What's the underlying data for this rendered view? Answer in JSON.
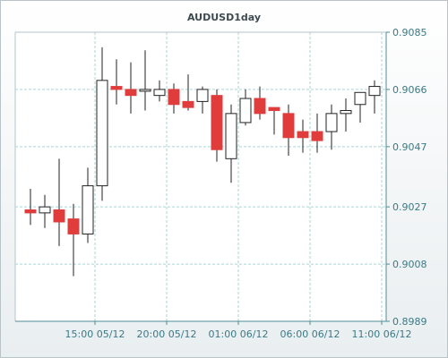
{
  "chart_data": {
    "type": "candlestick",
    "title": "AUDUSD1day",
    "y_ticks": [
      "0.9085",
      "0.9066",
      "0.9047",
      "0.9027",
      "0.9008",
      "0.8989"
    ],
    "y_tick_values": [
      0.9085,
      0.9066,
      0.9047,
      0.9027,
      0.9008,
      0.8989
    ],
    "ylim": [
      0.8989,
      0.9085
    ],
    "x_ticks": [
      "15:00 05/12",
      "20:00 05/12",
      "01:00 06/12",
      "06:00 06/12",
      "11:00 06/12"
    ],
    "x_tick_index": [
      4.5,
      9.5,
      14.5,
      19.5,
      24.5
    ],
    "grid": true,
    "colors": {
      "up": "#ffffff",
      "down": "#e03c3c",
      "wick": "#222222",
      "grid": "#a9d6d6",
      "axis": "#4f8c97"
    },
    "candles": [
      {
        "open": 0.9026,
        "high": 0.9033,
        "low": 0.9021,
        "close": 0.9025
      },
      {
        "open": 0.9025,
        "high": 0.9031,
        "low": 0.902,
        "close": 0.9027
      },
      {
        "open": 0.9026,
        "high": 0.9043,
        "low": 0.9014,
        "close": 0.9022
      },
      {
        "open": 0.9023,
        "high": 0.9028,
        "low": 0.9004,
        "close": 0.9018
      },
      {
        "open": 0.9018,
        "high": 0.904,
        "low": 0.9015,
        "close": 0.9034
      },
      {
        "open": 0.9034,
        "high": 0.908,
        "low": 0.9029,
        "close": 0.9069
      },
      {
        "open": 0.9067,
        "high": 0.9076,
        "low": 0.9061,
        "close": 0.9066
      },
      {
        "open": 0.9066,
        "high": 0.9075,
        "low": 0.9058,
        "close": 0.9064
      },
      {
        "open": 0.9066,
        "high": 0.9079,
        "low": 0.9059,
        "close": 0.9066
      },
      {
        "open": 0.9064,
        "high": 0.9069,
        "low": 0.9062,
        "close": 0.9066
      },
      {
        "open": 0.9066,
        "high": 0.9068,
        "low": 0.9058,
        "close": 0.9061
      },
      {
        "open": 0.9062,
        "high": 0.9071,
        "low": 0.9059,
        "close": 0.906
      },
      {
        "open": 0.9062,
        "high": 0.9067,
        "low": 0.9058,
        "close": 0.9066
      },
      {
        "open": 0.9064,
        "high": 0.9066,
        "low": 0.9042,
        "close": 0.9046
      },
      {
        "open": 0.9043,
        "high": 0.9061,
        "low": 0.9035,
        "close": 0.9058
      },
      {
        "open": 0.9055,
        "high": 0.9066,
        "low": 0.9054,
        "close": 0.9063
      },
      {
        "open": 0.9063,
        "high": 0.9067,
        "low": 0.9056,
        "close": 0.9058
      },
      {
        "open": 0.906,
        "high": 0.906,
        "low": 0.9051,
        "close": 0.9059
      },
      {
        "open": 0.9058,
        "high": 0.9061,
        "low": 0.9044,
        "close": 0.905
      },
      {
        "open": 0.9052,
        "high": 0.9056,
        "low": 0.9045,
        "close": 0.905
      },
      {
        "open": 0.9052,
        "high": 0.9058,
        "low": 0.9045,
        "close": 0.9049
      },
      {
        "open": 0.9052,
        "high": 0.9061,
        "low": 0.9046,
        "close": 0.9058
      },
      {
        "open": 0.9058,
        "high": 0.9063,
        "low": 0.9052,
        "close": 0.9059
      },
      {
        "open": 0.9061,
        "high": 0.9065,
        "low": 0.9055,
        "close": 0.9065
      },
      {
        "open": 0.9064,
        "high": 0.9069,
        "low": 0.9058,
        "close": 0.9067
      }
    ]
  }
}
